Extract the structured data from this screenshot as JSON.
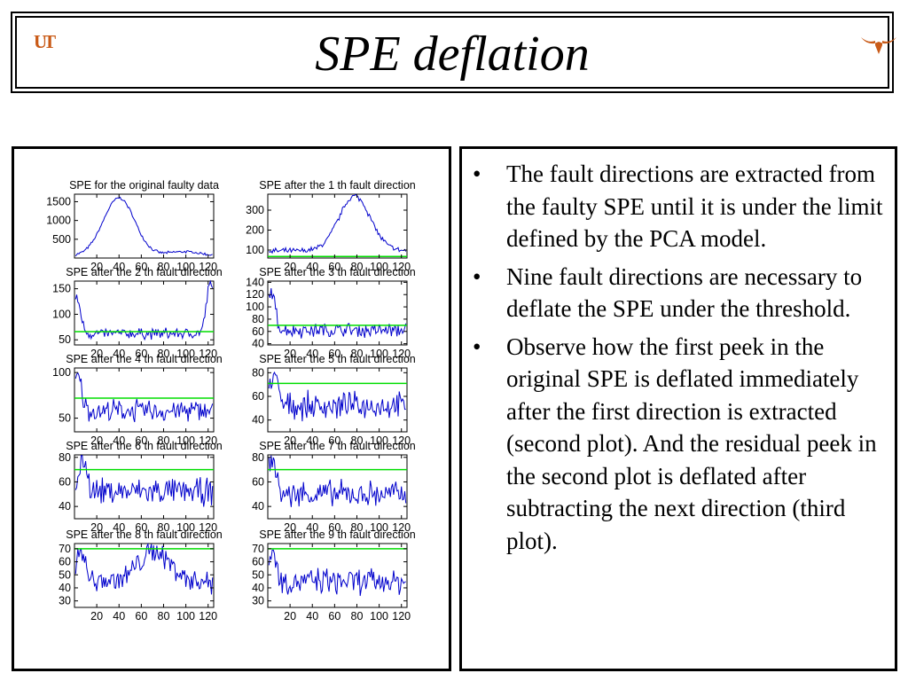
{
  "slide": {
    "title": "SPE deflation",
    "logo_text": "UT",
    "longhorn_icon": "longhorn-icon",
    "accent_color": "#c95a17"
  },
  "bullets": [
    "The fault directions are extracted from the faulty SPE until it is under the limit defined by the PCA model.",
    "Nine fault directions are necessary to deflate the SPE under the threshold.",
    "Observe how the first peek in the original SPE is deflated immediately after the first direction is extracted (second plot). And the residual peek in the second plot is deflated after subtracting the next direction (third plot)."
  ],
  "colors": {
    "series": "#0000cc",
    "threshold": "#00dd00",
    "axis": "#000000"
  },
  "chart_data": [
    {
      "type": "line",
      "title": "SPE for the original faulty data",
      "x_ticks": [
        20,
        40,
        60,
        80,
        100,
        120
      ],
      "xlim": [
        0,
        125
      ],
      "y_ticks": [
        500,
        1000,
        1500
      ],
      "ylim": [
        0,
        1700
      ],
      "threshold": null,
      "peaks": [
        {
          "x": 40,
          "y": 1600
        },
        {
          "x": 98,
          "y": 170
        }
      ],
      "base": 60,
      "noise": 30
    },
    {
      "type": "line",
      "title": "SPE after the 1 th fault direction",
      "x_ticks": [
        20,
        40,
        60,
        80,
        100,
        120
      ],
      "xlim": [
        0,
        125
      ],
      "y_ticks": [
        100,
        200,
        300
      ],
      "ylim": [
        60,
        380
      ],
      "threshold": 68,
      "peaks": [
        {
          "x": 78,
          "y": 370
        }
      ],
      "base": 95,
      "noise": 12
    },
    {
      "type": "line",
      "title": "SPE after the 2 th fault direction",
      "x_ticks": [
        20,
        40,
        60,
        80,
        100,
        120
      ],
      "xlim": [
        0,
        125
      ],
      "y_ticks": [
        50,
        100,
        150
      ],
      "ylim": [
        40,
        165
      ],
      "threshold": 66,
      "peaks": [
        {
          "x": 2,
          "y": 130
        },
        {
          "x": 122,
          "y": 160
        }
      ],
      "base": 62,
      "noise": 9
    },
    {
      "type": "line",
      "title": "SPE after the 3 th fault direction",
      "x_ticks": [
        20,
        40,
        60,
        80,
        100,
        120
      ],
      "xlim": [
        0,
        125
      ],
      "y_ticks": [
        40,
        60,
        80,
        100,
        120,
        140
      ],
      "ylim": [
        38,
        142
      ],
      "threshold": 70,
      "peaks": [
        {
          "x": 3,
          "y": 125
        }
      ],
      "base": 62,
      "noise": 10
    },
    {
      "type": "line",
      "title": "SPE after the 4 th fault direction",
      "x_ticks": [
        20,
        40,
        60,
        80,
        100,
        120
      ],
      "xlim": [
        0,
        125
      ],
      "y_ticks": [
        50,
        100
      ],
      "ylim": [
        35,
        105
      ],
      "threshold": 72,
      "peaks": [
        {
          "x": 3,
          "y": 95
        }
      ],
      "base": 58,
      "noise": 10
    },
    {
      "type": "line",
      "title": "SPE after the 5 th fault direction",
      "x_ticks": [
        20,
        40,
        60,
        80,
        100,
        120
      ],
      "xlim": [
        0,
        125
      ],
      "y_ticks": [
        40,
        60,
        80
      ],
      "ylim": [
        30,
        84
      ],
      "threshold": 71,
      "peaks": [
        {
          "x": 5,
          "y": 80
        }
      ],
      "base": 52,
      "noise": 9
    },
    {
      "type": "line",
      "title": "SPE after the 6 th fault direction",
      "x_ticks": [
        20,
        40,
        60,
        80,
        100,
        120
      ],
      "xlim": [
        0,
        125
      ],
      "y_ticks": [
        40,
        60,
        80
      ],
      "ylim": [
        30,
        82
      ],
      "threshold": 70,
      "peaks": [
        {
          "x": 8,
          "y": 78
        }
      ],
      "base": 52,
      "noise": 9
    },
    {
      "type": "line",
      "title": "SPE after the 7 th fault direction",
      "x_ticks": [
        20,
        40,
        60,
        80,
        100,
        120
      ],
      "xlim": [
        0,
        125
      ],
      "y_ticks": [
        40,
        60,
        80
      ],
      "ylim": [
        30,
        82
      ],
      "threshold": 70,
      "peaks": [
        {
          "x": 4,
          "y": 78
        }
      ],
      "base": 50,
      "noise": 9
    },
    {
      "type": "line",
      "title": "SPE after the 8 th fault direction",
      "x_ticks": [
        20,
        40,
        60,
        80,
        100,
        120
      ],
      "xlim": [
        0,
        125
      ],
      "y_ticks": [
        30,
        40,
        50,
        60,
        70
      ],
      "ylim": [
        25,
        74
      ],
      "threshold": 70,
      "peaks": [
        {
          "x": 6,
          "y": 70
        },
        {
          "x": 72,
          "y": 68
        }
      ],
      "base": 45,
      "noise": 8
    },
    {
      "type": "line",
      "title": "SPE after the 9 th fault direction",
      "x_ticks": [
        20,
        40,
        60,
        80,
        100,
        120
      ],
      "xlim": [
        0,
        125
      ],
      "y_ticks": [
        30,
        40,
        50,
        60,
        70
      ],
      "ylim": [
        25,
        74
      ],
      "threshold": 70,
      "peaks": [
        {
          "x": 4,
          "y": 68
        }
      ],
      "base": 45,
      "noise": 8
    }
  ]
}
